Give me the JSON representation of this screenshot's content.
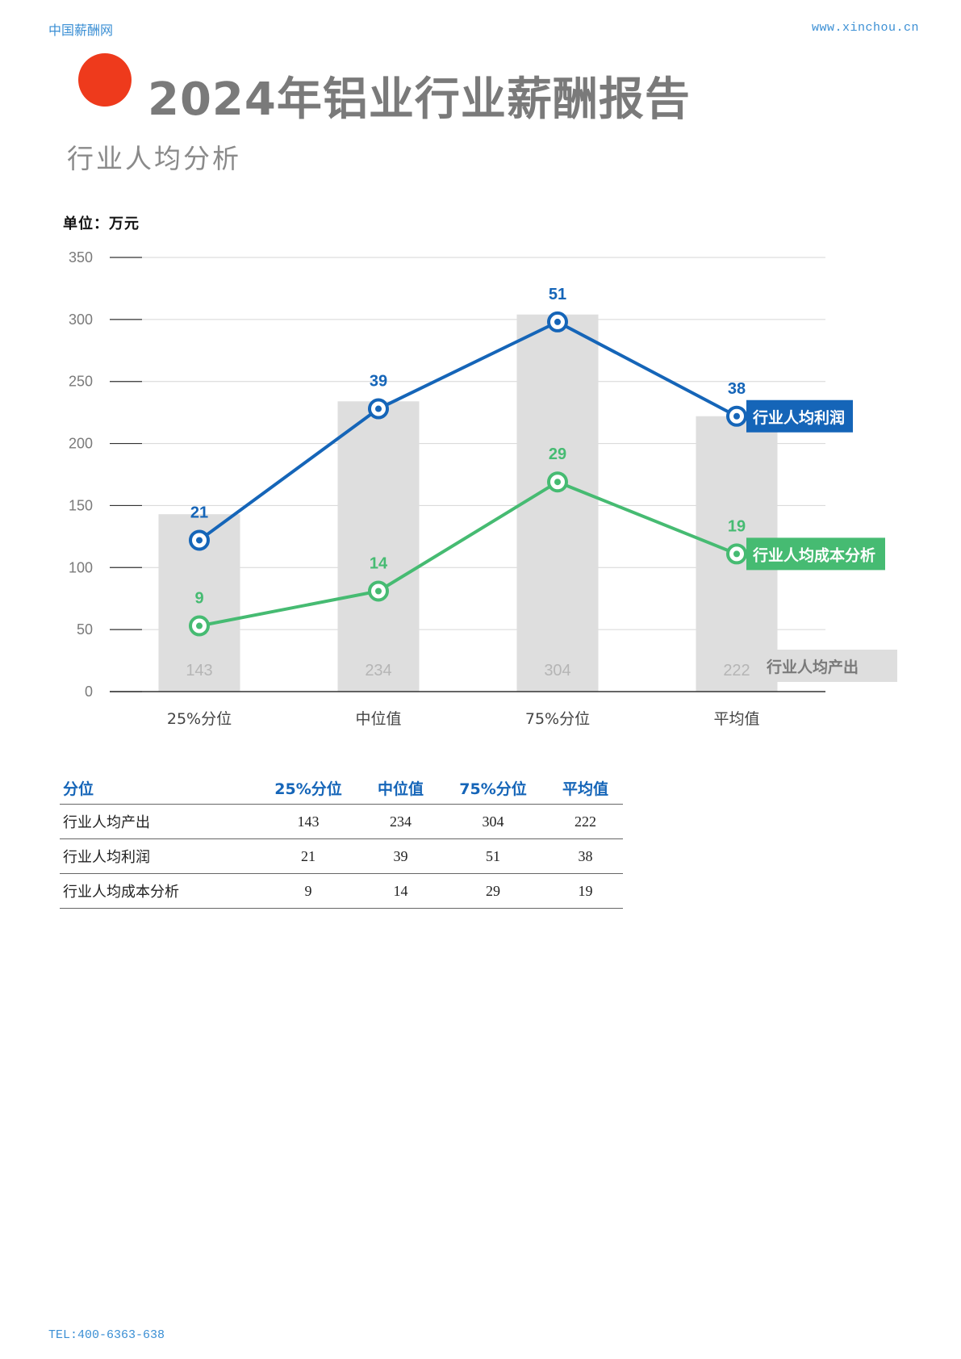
{
  "header": {
    "site_name": "中国薪酬网",
    "url": "www.xinchou.cn"
  },
  "title": "2024年铝业行业薪酬报告",
  "subtitle": "行业人均分析",
  "unit_label": "单位：万元",
  "colors": {
    "accent_dot": "#ee3a1c",
    "profit_line": "#1565b8",
    "cost_line": "#46bb72",
    "bars": "#dedede",
    "header_text": "#3b8fd4"
  },
  "chart_data": {
    "type": "bar",
    "categories": [
      "25%分位",
      "中位值",
      "75%分位",
      "平均值"
    ],
    "ylim": [
      0,
      350
    ],
    "yticks": [
      0,
      50,
      100,
      150,
      200,
      250,
      300,
      350
    ],
    "grid": true,
    "bars": {
      "name": "行业人均产出",
      "values": [
        143,
        234,
        304,
        222
      ]
    },
    "lines": [
      {
        "name": "行业人均利润",
        "labels": [
          21,
          39,
          51,
          38
        ],
        "plot_values": [
          122,
          228,
          298,
          222
        ]
      },
      {
        "name": "行业人均成本分析",
        "labels": [
          9,
          14,
          29,
          19
        ],
        "plot_values": [
          53,
          81,
          169,
          111
        ]
      }
    ]
  },
  "table": {
    "headers": [
      "分位",
      "25%分位",
      "中位值",
      "75%分位",
      "平均值"
    ],
    "rows": [
      [
        "行业人均产出",
        "143",
        "234",
        "304",
        "222"
      ],
      [
        "行业人均利润",
        "21",
        "39",
        "51",
        "38"
      ],
      [
        "行业人均成本分析",
        "9",
        "14",
        "29",
        "19"
      ]
    ]
  },
  "footer": "TEL:400-6363-638"
}
